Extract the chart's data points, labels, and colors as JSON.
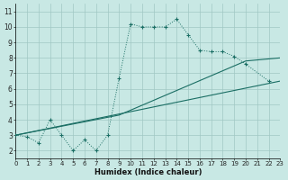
{
  "xlabel": "Humidex (Indice chaleur)",
  "xlim": [
    0,
    23
  ],
  "ylim": [
    1.5,
    11.5
  ],
  "yticks": [
    2,
    3,
    4,
    5,
    6,
    7,
    8,
    9,
    10,
    11
  ],
  "xticks": [
    0,
    1,
    2,
    3,
    4,
    5,
    6,
    7,
    8,
    9,
    10,
    11,
    12,
    13,
    14,
    15,
    16,
    17,
    18,
    19,
    20,
    21,
    22,
    23
  ],
  "bg_color": "#c8e8e4",
  "grid_color": "#a0c8c4",
  "line_color": "#1a6e64",
  "curve1_x": [
    0,
    1,
    2,
    3,
    4,
    5,
    6,
    7,
    8,
    9,
    10,
    11,
    12,
    13,
    14,
    15,
    16,
    17,
    18,
    19,
    20,
    22
  ],
  "curve1_y": [
    3.0,
    2.9,
    2.5,
    4.0,
    3.0,
    2.0,
    2.7,
    2.0,
    3.0,
    6.7,
    10.2,
    10.0,
    10.0,
    10.0,
    10.5,
    9.5,
    8.5,
    8.4,
    8.4,
    8.1,
    7.6,
    6.5
  ],
  "line2_x": [
    0,
    23
  ],
  "line2_y": [
    3.0,
    6.5
  ],
  "line3_x": [
    0,
    23
  ],
  "line3_y": [
    3.0,
    6.5
  ],
  "line4_x": [
    0,
    9,
    20,
    23
  ],
  "line4_y": [
    3.0,
    4.3,
    7.8,
    8.0
  ]
}
